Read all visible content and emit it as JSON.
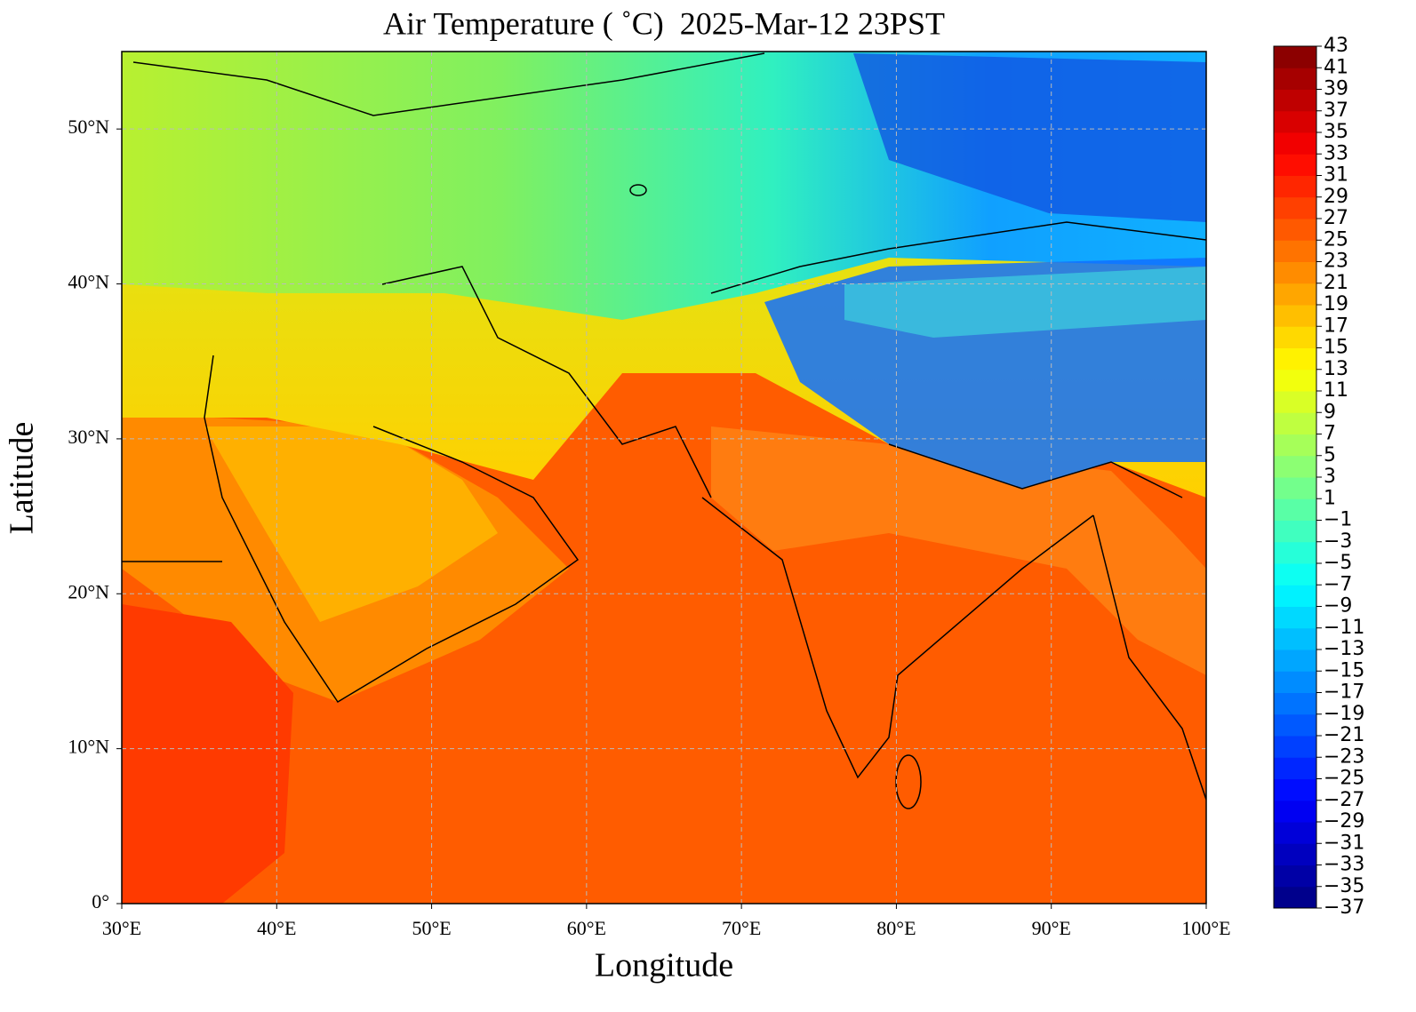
{
  "chart_data": {
    "type": "map",
    "title": "Air Temperature ( ˚C)  2025-Mar-12 23PST",
    "x_label": "Longitude",
    "y_label": "Latitude",
    "xlim": [
      30,
      100
    ],
    "ylim": [
      0,
      55
    ],
    "xticks": [
      {
        "value": 30,
        "label": "30°E"
      },
      {
        "value": 40,
        "label": "40°E"
      },
      {
        "value": 50,
        "label": "50°E"
      },
      {
        "value": 60,
        "label": "60°E"
      },
      {
        "value": 70,
        "label": "70°E"
      },
      {
        "value": 80,
        "label": "80°E"
      },
      {
        "value": 90,
        "label": "90°E"
      },
      {
        "value": 100,
        "label": "100°E"
      }
    ],
    "yticks": [
      {
        "value": 0,
        "label": "0°"
      },
      {
        "value": 10,
        "label": "10°N"
      },
      {
        "value": 20,
        "label": "20°N"
      },
      {
        "value": 30,
        "label": "30°N"
      },
      {
        "value": 40,
        "label": "40°N"
      },
      {
        "value": 50,
        "label": "50°N"
      }
    ],
    "grid": true,
    "colorbar": {
      "lim": [
        -37,
        43
      ],
      "colormap": "jet",
      "ticks": [
        {
          "value": -37,
          "label": "−37"
        },
        {
          "value": -35,
          "label": "−35"
        },
        {
          "value": -33,
          "label": "−33"
        },
        {
          "value": -31,
          "label": "−31"
        },
        {
          "value": -29,
          "label": "−29"
        },
        {
          "value": -27,
          "label": "−27"
        },
        {
          "value": -25,
          "label": "−25"
        },
        {
          "value": -23,
          "label": "−23"
        },
        {
          "value": -21,
          "label": "−21"
        },
        {
          "value": -19,
          "label": "−19"
        },
        {
          "value": -17,
          "label": "−17"
        },
        {
          "value": -15,
          "label": "−15"
        },
        {
          "value": -13,
          "label": "−13"
        },
        {
          "value": -11,
          "label": "−11"
        },
        {
          "value": -9,
          "label": "−9"
        },
        {
          "value": -7,
          "label": "−7"
        },
        {
          "value": -5,
          "label": "−5"
        },
        {
          "value": -3,
          "label": "−3"
        },
        {
          "value": -1,
          "label": "−1"
        },
        1,
        3,
        5,
        7,
        9,
        11,
        13,
        15,
        17,
        19,
        21,
        23,
        25,
        27,
        29,
        31,
        33,
        35,
        37,
        39,
        41,
        43
      ]
    }
  }
}
